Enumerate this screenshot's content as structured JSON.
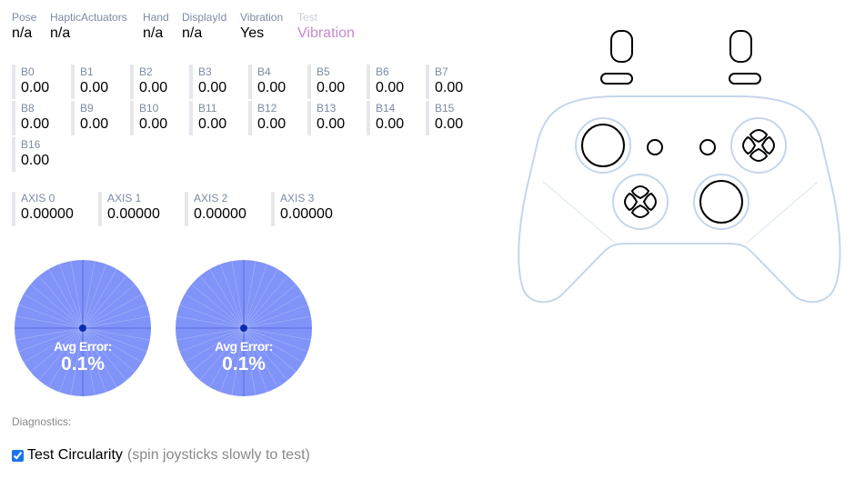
{
  "info": [
    {
      "label": "Pose",
      "value": "n/a"
    },
    {
      "label": "HapticActuators",
      "value": "n/a"
    },
    {
      "label": "Hand",
      "value": "n/a"
    },
    {
      "label": "DisplayId",
      "value": "n/a"
    },
    {
      "label": "Vibration",
      "value": "Yes"
    },
    {
      "label": "Test",
      "value": "Vibration"
    }
  ],
  "buttons": [
    {
      "label": "B0",
      "value": "0.00"
    },
    {
      "label": "B1",
      "value": "0.00"
    },
    {
      "label": "B2",
      "value": "0.00"
    },
    {
      "label": "B3",
      "value": "0.00"
    },
    {
      "label": "B4",
      "value": "0.00"
    },
    {
      "label": "B5",
      "value": "0.00"
    },
    {
      "label": "B6",
      "value": "0.00"
    },
    {
      "label": "B7",
      "value": "0.00"
    },
    {
      "label": "B8",
      "value": "0.00"
    },
    {
      "label": "B9",
      "value": "0.00"
    },
    {
      "label": "B10",
      "value": "0.00"
    },
    {
      "label": "B11",
      "value": "0.00"
    },
    {
      "label": "B12",
      "value": "0.00"
    },
    {
      "label": "B13",
      "value": "0.00"
    },
    {
      "label": "B14",
      "value": "0.00"
    },
    {
      "label": "B15",
      "value": "0.00"
    },
    {
      "label": "B16",
      "value": "0.00"
    }
  ],
  "axes": [
    {
      "label": "AXIS 0",
      "value": "0.00000"
    },
    {
      "label": "AXIS 1",
      "value": "0.00000"
    },
    {
      "label": "AXIS 2",
      "value": "0.00000"
    },
    {
      "label": "AXIS 3",
      "value": "0.00000"
    }
  ],
  "circularity": [
    {
      "title": "Avg Error:",
      "value": "0.1%"
    },
    {
      "title": "Avg Error:",
      "value": "0.1%"
    }
  ],
  "diagnostics_label": "Diagnostics:",
  "test_circularity": {
    "label": "Test Circularity",
    "hint": "(spin joysticks slowly to test)",
    "checked": true
  },
  "colors": {
    "circle_fill": "#8093f8",
    "center_dot": "#0a2db0",
    "controller_outline": "#c5d6ea",
    "test_value": "#c58ad0"
  }
}
